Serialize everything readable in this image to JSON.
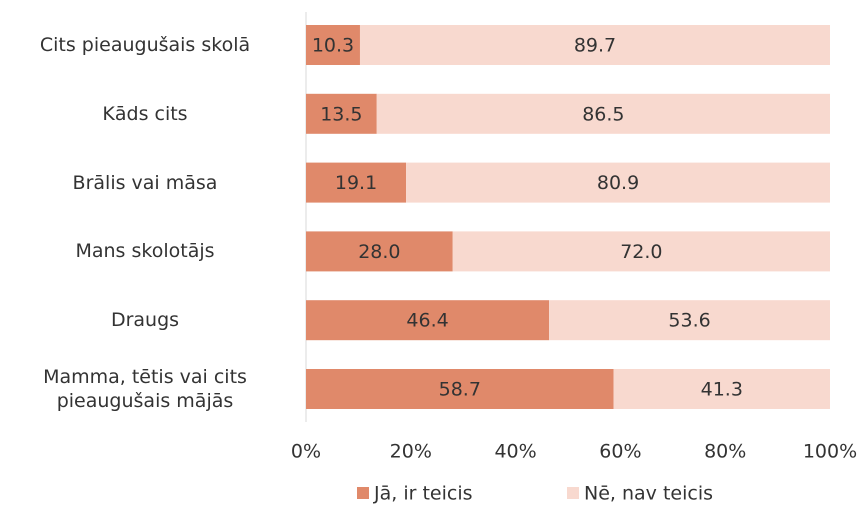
{
  "chart_data": {
    "type": "stacked_barh",
    "categories": [
      "Cits pieaugušais skolā",
      "Kāds cits",
      "Brālis vai māsa",
      "Mans skolotājs",
      "Draugs",
      "Mamma, tētis vai cits pieaugušais mājās"
    ],
    "series": [
      {
        "name": "Jā, ir teicis",
        "color": "#e0896a",
        "values": [
          10.3,
          13.5,
          19.1,
          28.0,
          46.4,
          58.7
        ],
        "value_labels": [
          "10.3",
          "13.5",
          "19.1",
          "28.0",
          "46.4",
          "58.7"
        ]
      },
      {
        "name": "Nē, nav teicis",
        "color": "#f8d9cf",
        "values": [
          89.7,
          86.5,
          80.9,
          72.0,
          53.6,
          41.3
        ],
        "value_labels": [
          "89.7",
          "86.5",
          "80.9",
          "72.0",
          "53.6",
          "41.3"
        ]
      }
    ],
    "xlim": [
      0,
      100
    ],
    "xticks": [
      {
        "value": 0,
        "label": "0%"
      },
      {
        "value": 20,
        "label": "20%"
      },
      {
        "value": 40,
        "label": "40%"
      },
      {
        "value": 60,
        "label": "60%"
      },
      {
        "value": 80,
        "label": "80%"
      },
      {
        "value": 100,
        "label": "100%"
      }
    ],
    "legend": "bottom"
  }
}
